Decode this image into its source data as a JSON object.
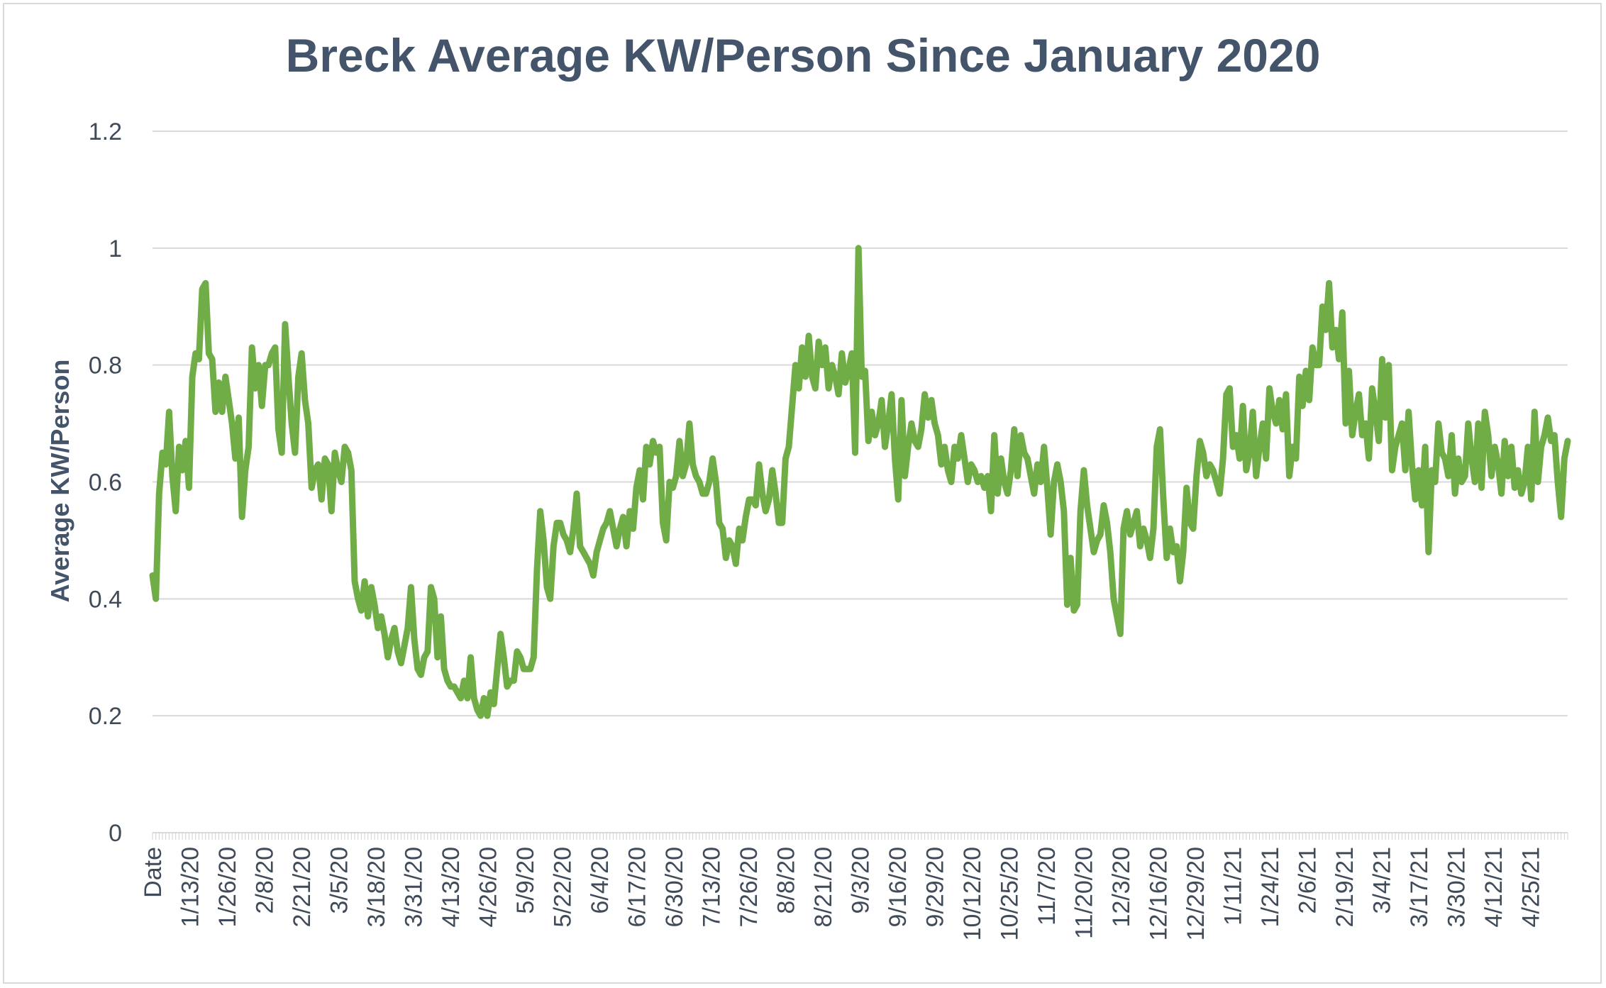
{
  "chart_data": {
    "type": "line",
    "title": "Breck Average KW/Person Since January 2020",
    "xlabel": "",
    "ylabel": "Average KW/Person",
    "ylim": [
      0,
      1.2
    ],
    "yticks": [
      0,
      0.2,
      0.4,
      0.6,
      0.8,
      1,
      1.2
    ],
    "grid": true,
    "legend": "none",
    "line_color": "#70ad47",
    "x_tick_labels": [
      "Date",
      "1/13/20",
      "1/26/20",
      "2/8/20",
      "2/21/20",
      "3/5/20",
      "3/18/20",
      "3/31/20",
      "4/13/20",
      "4/26/20",
      "5/9/20",
      "5/22/20",
      "6/4/20",
      "6/17/20",
      "6/30/20",
      "7/13/20",
      "7/26/20",
      "8/8/20",
      "8/21/20",
      "9/3/20",
      "9/16/20",
      "9/29/20",
      "10/12/20",
      "10/25/20",
      "11/7/20",
      "11/20/20",
      "12/3/20",
      "12/16/20",
      "12/29/20",
      "1/11/21",
      "1/24/21",
      "2/6/21",
      "2/19/21",
      "3/4/21",
      "3/17/21",
      "3/30/21",
      "4/12/21",
      "4/25/21"
    ],
    "series": [
      {
        "name": "",
        "values": [
          0.44,
          0.4,
          0.58,
          0.65,
          0.63,
          0.72,
          0.61,
          0.55,
          0.66,
          0.62,
          0.67,
          0.59,
          0.78,
          0.82,
          0.81,
          0.93,
          0.94,
          0.82,
          0.81,
          0.72,
          0.77,
          0.72,
          0.78,
          0.74,
          0.7,
          0.64,
          0.71,
          0.54,
          0.62,
          0.66,
          0.83,
          0.76,
          0.8,
          0.73,
          0.8,
          0.8,
          0.82,
          0.83,
          0.69,
          0.65,
          0.87,
          0.78,
          0.7,
          0.65,
          0.78,
          0.82,
          0.74,
          0.7,
          0.59,
          0.62,
          0.63,
          0.57,
          0.64,
          0.63,
          0.55,
          0.65,
          0.62,
          0.6,
          0.66,
          0.65,
          0.62,
          0.43,
          0.4,
          0.38,
          0.43,
          0.37,
          0.42,
          0.39,
          0.35,
          0.37,
          0.34,
          0.3,
          0.33,
          0.35,
          0.31,
          0.29,
          0.32,
          0.35,
          0.42,
          0.33,
          0.28,
          0.27,
          0.3,
          0.31,
          0.42,
          0.4,
          0.3,
          0.37,
          0.28,
          0.26,
          0.25,
          0.25,
          0.24,
          0.23,
          0.26,
          0.23,
          0.3,
          0.23,
          0.21,
          0.2,
          0.23,
          0.2,
          0.24,
          0.22,
          0.28,
          0.34,
          0.3,
          0.25,
          0.26,
          0.26,
          0.31,
          0.3,
          0.28,
          0.28,
          0.28,
          0.3,
          0.45,
          0.55,
          0.5,
          0.42,
          0.4,
          0.49,
          0.53,
          0.53,
          0.51,
          0.5,
          0.48,
          0.52,
          0.58,
          0.49,
          0.48,
          0.47,
          0.46,
          0.44,
          0.48,
          0.5,
          0.52,
          0.53,
          0.55,
          0.52,
          0.49,
          0.52,
          0.54,
          0.49,
          0.55,
          0.52,
          0.59,
          0.62,
          0.57,
          0.66,
          0.63,
          0.67,
          0.65,
          0.66,
          0.53,
          0.5,
          0.6,
          0.59,
          0.61,
          0.67,
          0.61,
          0.63,
          0.7,
          0.63,
          0.61,
          0.6,
          0.58,
          0.58,
          0.6,
          0.64,
          0.6,
          0.53,
          0.52,
          0.47,
          0.5,
          0.49,
          0.46,
          0.52,
          0.5,
          0.54,
          0.57,
          0.57,
          0.56,
          0.63,
          0.58,
          0.55,
          0.57,
          0.62,
          0.58,
          0.53,
          0.53,
          0.64,
          0.66,
          0.73,
          0.8,
          0.76,
          0.83,
          0.78,
          0.85,
          0.78,
          0.76,
          0.84,
          0.8,
          0.83,
          0.76,
          0.8,
          0.78,
          0.75,
          0.82,
          0.77,
          0.79,
          0.82,
          0.65,
          1.0,
          0.78,
          0.79,
          0.67,
          0.72,
          0.68,
          0.7,
          0.74,
          0.66,
          0.7,
          0.75,
          0.64,
          0.57,
          0.74,
          0.61,
          0.66,
          0.7,
          0.67,
          0.66,
          0.69,
          0.75,
          0.71,
          0.74,
          0.7,
          0.68,
          0.63,
          0.66,
          0.62,
          0.6,
          0.66,
          0.64,
          0.68,
          0.64,
          0.6,
          0.63,
          0.62,
          0.6,
          0.61,
          0.59,
          0.61,
          0.55,
          0.68,
          0.58,
          0.64,
          0.6,
          0.58,
          0.62,
          0.69,
          0.61,
          0.68,
          0.65,
          0.64,
          0.61,
          0.58,
          0.63,
          0.6,
          0.66,
          0.59,
          0.51,
          0.6,
          0.63,
          0.6,
          0.55,
          0.39,
          0.47,
          0.38,
          0.39,
          0.55,
          0.62,
          0.56,
          0.52,
          0.48,
          0.5,
          0.51,
          0.56,
          0.53,
          0.48,
          0.4,
          0.37,
          0.34,
          0.52,
          0.55,
          0.51,
          0.53,
          0.55,
          0.49,
          0.52,
          0.5,
          0.47,
          0.52,
          0.66,
          0.69,
          0.57,
          0.47,
          0.52,
          0.48,
          0.49,
          0.43,
          0.48,
          0.59,
          0.53,
          0.52,
          0.61,
          0.67,
          0.65,
          0.61,
          0.63,
          0.62,
          0.6,
          0.58,
          0.64,
          0.75,
          0.76,
          0.66,
          0.68,
          0.64,
          0.73,
          0.62,
          0.65,
          0.72,
          0.61,
          0.66,
          0.7,
          0.64,
          0.76,
          0.72,
          0.7,
          0.74,
          0.69,
          0.75,
          0.61,
          0.66,
          0.64,
          0.78,
          0.73,
          0.79,
          0.74,
          0.83,
          0.8,
          0.8,
          0.9,
          0.86,
          0.94,
          0.83,
          0.86,
          0.81,
          0.89,
          0.7,
          0.79,
          0.68,
          0.72,
          0.75,
          0.68,
          0.7,
          0.64,
          0.76,
          0.72,
          0.67,
          0.81,
          0.71,
          0.8,
          0.62,
          0.66,
          0.68,
          0.7,
          0.62,
          0.72,
          0.63,
          0.57,
          0.62,
          0.56,
          0.66,
          0.48,
          0.62,
          0.6,
          0.7,
          0.65,
          0.64,
          0.61,
          0.68,
          0.58,
          0.64,
          0.6,
          0.61,
          0.7,
          0.64,
          0.6,
          0.7,
          0.59,
          0.72,
          0.68,
          0.61,
          0.66,
          0.63,
          0.58,
          0.67,
          0.61,
          0.66,
          0.59,
          0.62,
          0.58,
          0.6,
          0.66,
          0.57,
          0.72,
          0.6,
          0.66,
          0.68,
          0.71,
          0.67,
          0.68,
          0.6,
          0.54,
          0.64,
          0.67
        ]
      }
    ]
  }
}
